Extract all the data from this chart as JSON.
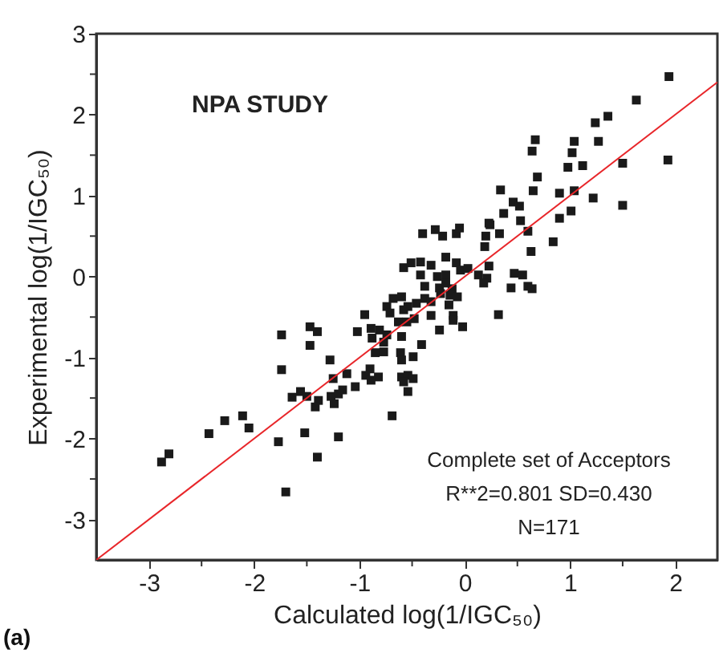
{
  "chart_data": {
    "type": "scatter",
    "title": "NPA STUDY",
    "xlabel": "Calculated log(1/IGC₅₀)",
    "ylabel": "Experimental log(1/IGC₅₀)",
    "annotations": [
      "Complete set of Acceptors",
      "R**2=0.801 SD=0.430",
      "N=171",
      "(a)"
    ],
    "xlim": [
      -3.5,
      2.4
    ],
    "ylim": [
      -3.5,
      3
    ],
    "xticks": [
      -3,
      {
        "value": -2.5,
        "label": null
      },
      -2,
      {
        "value": -1.5,
        "label": null
      },
      -1,
      {
        "value": -0.5,
        "label": null
      },
      0,
      {
        "value": 0.5,
        "label": null
      },
      1,
      {
        "value": 1.5,
        "label": null
      },
      2
    ],
    "yticks": [
      -3,
      {
        "value": -2.5,
        "label": null
      },
      -2,
      {
        "value": -1.5,
        "label": null
      },
      -1,
      {
        "value": -0.5,
        "label": null
      },
      0,
      {
        "value": 0.5,
        "label": null
      },
      1,
      {
        "value": 1.5,
        "label": null
      },
      2,
      {
        "value": 2.5,
        "label": null
      },
      3
    ],
    "grid": false,
    "legend": false,
    "marker": "square",
    "series": [
      {
        "color": "#1a1a1a",
        "x": [
          1.94,
          1.63,
          1.36,
          1.24,
          0.67,
          0.64,
          1.04,
          1.27,
          1.02,
          0.98,
          1.12,
          1.5,
          1.93,
          0.69,
          0.34,
          0.65,
          0.9,
          1.04,
          1.22,
          1.5,
          0.46,
          0.52,
          0.37,
          0.23,
          0.53,
          0.9,
          1.01,
          -0.4,
          -0.28,
          -0.21,
          -0.08,
          -0.05,
          0.2,
          0.24,
          0.33,
          0.6,
          0.19,
          0.63,
          0.84,
          -0.18,
          -0.58,
          -0.51,
          -0.42,
          -0.32,
          -0.08,
          -0.04,
          0.03,
          0.23,
          0.13,
          0.21,
          0.18,
          -0.42,
          -0.26,
          -0.18,
          -0.38,
          -0.24,
          -0.18,
          -0.12,
          0.47,
          0.55,
          0.44,
          0.6,
          0.64,
          -0.23,
          -0.14,
          -0.07,
          -0.68,
          -0.6,
          -0.38,
          -0.74,
          -0.54,
          -0.46,
          -0.32,
          -0.15,
          -0.71,
          -0.58,
          -0.48,
          -0.32,
          -0.11,
          -0.11,
          0.32,
          -0.95,
          -0.63,
          -0.55,
          -0.02,
          -0.24,
          -1.02,
          -0.89,
          -0.81,
          -1.47,
          -1.4,
          -1.74,
          -0.74,
          -0.6,
          -0.88,
          -0.77,
          -0.41,
          -1.47,
          -0.85,
          -0.77,
          -0.61,
          -0.49,
          -0.6,
          -1.28,
          -1.74,
          -0.9,
          -0.94,
          -0.82,
          -0.89,
          -1.12,
          -1.25,
          -0.6,
          -0.54,
          -0.49,
          -0.58,
          -0.54,
          -1.04,
          -1.16,
          -1.2,
          -1.56,
          -1.64,
          -1.5,
          -1.39,
          -1.27,
          -1.42,
          -1.24,
          -2.11,
          -0.69,
          -2.28,
          -2.05,
          -2.43,
          -1.77,
          -1.52,
          -1.2,
          -1.4,
          -2.81,
          -2.88,
          -1.7
        ],
        "values": [
          2.47,
          2.18,
          1.98,
          1.9,
          1.69,
          1.55,
          1.67,
          1.67,
          1.53,
          1.35,
          1.37,
          1.4,
          1.44,
          1.23,
          1.07,
          1.06,
          1.03,
          1.06,
          0.97,
          0.88,
          0.92,
          0.87,
          0.78,
          0.66,
          0.69,
          0.72,
          0.81,
          0.53,
          0.58,
          0.5,
          0.53,
          0.6,
          0.5,
          0.64,
          0.53,
          0.56,
          0.37,
          0.31,
          0.43,
          0.24,
          0.11,
          0.17,
          0.18,
          0.14,
          0.17,
          0.08,
          0.1,
          0.13,
          0.02,
          -0.02,
          -0.08,
          0.02,
          0.0,
          0.02,
          -0.12,
          -0.14,
          -0.08,
          -0.15,
          0.04,
          0.02,
          -0.14,
          -0.12,
          -0.15,
          -0.21,
          -0.23,
          -0.25,
          -0.27,
          -0.25,
          -0.27,
          -0.37,
          -0.37,
          -0.33,
          -0.31,
          -0.35,
          -0.45,
          -0.41,
          -0.52,
          -0.48,
          -0.48,
          -0.54,
          -0.47,
          -0.47,
          -0.56,
          -0.56,
          -0.62,
          -0.66,
          -0.68,
          -0.64,
          -0.66,
          -0.62,
          -0.68,
          -0.72,
          -0.72,
          -0.74,
          -0.76,
          -0.81,
          -0.84,
          -0.85,
          -0.94,
          -0.93,
          -0.94,
          -0.99,
          -1.03,
          -1.03,
          -1.15,
          -1.14,
          -1.22,
          -1.24,
          -1.28,
          -1.2,
          -1.26,
          -1.24,
          -1.22,
          -1.26,
          -1.3,
          -1.42,
          -1.36,
          -1.4,
          -1.45,
          -1.42,
          -1.49,
          -1.48,
          -1.53,
          -1.48,
          -1.61,
          -1.57,
          -1.72,
          -1.72,
          -1.78,
          -1.87,
          -1.94,
          -2.04,
          -1.93,
          -1.98,
          -2.23,
          -2.19,
          -2.29,
          -2.66
        ]
      },
      {
        "type": "line",
        "color": "#e8262a",
        "marker": "none",
        "x": [
          -3.5,
          2.4
        ],
        "values": [
          -3.5,
          2.4
        ]
      }
    ]
  }
}
